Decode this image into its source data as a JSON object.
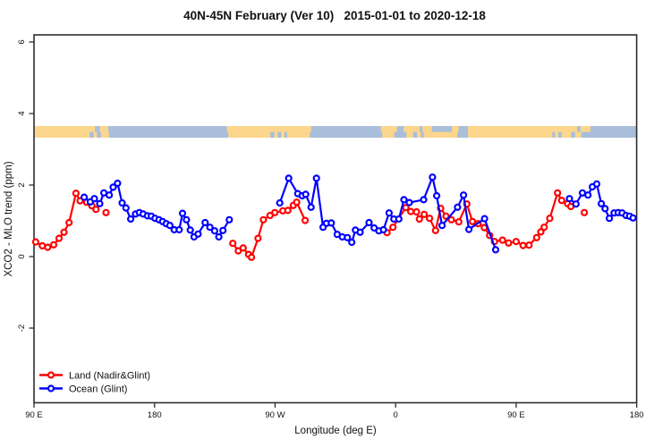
{
  "title": "40N-45N February (Ver 10)   2015-01-01 to 2020-12-18",
  "axes": {
    "x": {
      "label": "Longitude (deg E)",
      "ticks": [
        {
          "lon": 90,
          "label": "90 E"
        },
        {
          "lon": 180,
          "label": "180"
        },
        {
          "lon": 270,
          "label": "90 W"
        },
        {
          "lon": 360,
          "label": "0"
        },
        {
          "lon": 450,
          "label": "90 E"
        },
        {
          "lon": 540,
          "label": "180"
        }
      ]
    },
    "y": {
      "label": "XCO2 - MLO trend (ppm)",
      "ticks": [
        {
          "value": 6,
          "label": "6"
        },
        {
          "value": 4,
          "label": "4"
        },
        {
          "value": 2,
          "label": "2"
        },
        {
          "value": 0,
          "label": "0"
        },
        {
          "value": -2,
          "label": "-2"
        }
      ]
    }
  },
  "legend": {
    "items": [
      {
        "label": "Land (Nadir&Glint)",
        "color": "#ff0000"
      },
      {
        "label": "Ocean (Glint)",
        "color": "#0000ff"
      }
    ]
  },
  "map_strip": {
    "land_color": "#fbd68c",
    "ocean_color": "#a9bedb",
    "rows": [
      {
        "land_segments": [
          [
            90,
            135.5
          ],
          [
            139,
            145.5
          ],
          [
            234,
            297
          ],
          [
            349,
            361
          ],
          [
            366,
            378
          ],
          [
            380,
            387
          ],
          [
            402,
            407
          ],
          [
            414,
            495.5
          ],
          [
            498,
            505.5
          ]
        ]
      },
      {
        "land_segments": [
          [
            90,
            131.5
          ],
          [
            134.5,
            137
          ],
          [
            140,
            146
          ],
          [
            235,
            266.5
          ],
          [
            269.5,
            272
          ],
          [
            274.5,
            277
          ],
          [
            279,
            296
          ],
          [
            350,
            359
          ],
          [
            368,
            373
          ],
          [
            376,
            379
          ],
          [
            381,
            406
          ],
          [
            414,
            477
          ],
          [
            479,
            481.5
          ],
          [
            484,
            491
          ],
          [
            494,
            498.5
          ]
        ]
      }
    ]
  },
  "chart_data": {
    "type": "line",
    "title": "40N-45N February (Ver 10)   2015-01-01 to 2020-12-18",
    "xlabel": "Longitude (deg E)",
    "ylabel": "XCO2 - MLO trend (ppm)",
    "x_axis_lon_range": [
      90,
      540
    ],
    "x_tick_labels": [
      "90 E",
      "180",
      "90 W",
      "0",
      "90 E",
      "180"
    ],
    "ylim": [
      -4.1,
      6.2
    ],
    "grid": false,
    "legend_position": "bottom-left",
    "marker": "open-circle",
    "series": [
      {
        "name": "Land (Nadir&Glint)",
        "color": "#ff0000",
        "segments": [
          [
            [
              91.3,
              0.41
            ],
            [
              96.2,
              0.3
            ],
            [
              100.2,
              0.26
            ],
            [
              104.7,
              0.33
            ],
            [
              108.7,
              0.51
            ],
            [
              112.4,
              0.68
            ],
            [
              116.2,
              0.95
            ],
            [
              121.3,
              1.77
            ],
            [
              124.4,
              1.56
            ],
            [
              129.3,
              1.52
            ],
            [
              133.2,
              1.42
            ],
            [
              136.3,
              1.32
            ]
          ],
          [
            [
              143.8,
              1.23
            ]
          ],
          [
            [
              238.4,
              0.37
            ],
            [
              242.5,
              0.16
            ],
            [
              246.2,
              0.24
            ],
            [
              250.2,
              0.06
            ],
            [
              252.4,
              -0.02
            ],
            [
              257.3,
              0.51
            ],
            [
              261.3,
              1.03
            ],
            [
              266.2,
              1.15
            ],
            [
              269.8,
              1.23
            ],
            [
              275.8,
              1.28
            ],
            [
              279.6,
              1.29
            ],
            [
              283.6,
              1.43
            ],
            [
              286.1,
              1.52
            ],
            [
              292.5,
              1.01
            ]
          ],
          [
            [
              353.6,
              0.67
            ],
            [
              358.0,
              0.82
            ],
            [
              367.6,
              1.37
            ],
            [
              371.3,
              1.26
            ],
            [
              375.6,
              1.25
            ],
            [
              377.8,
              1.05
            ],
            [
              381.3,
              1.18
            ],
            [
              385.3,
              1.07
            ],
            [
              389.8,
              0.73
            ],
            [
              393.6,
              1.35
            ],
            [
              397.6,
              1.13
            ],
            [
              401.6,
              1.03
            ],
            [
              407.2,
              0.97
            ],
            [
              413.2,
              1.47
            ],
            [
              417.4,
              0.98
            ],
            [
              421.6,
              0.92
            ],
            [
              426.2,
              0.81
            ],
            [
              430.2,
              0.59
            ],
            [
              433.8,
              0.42
            ],
            [
              439.8,
              0.46
            ],
            [
              444.3,
              0.38
            ],
            [
              450.0,
              0.42
            ],
            [
              455.2,
              0.31
            ],
            [
              459.6,
              0.32
            ],
            [
              465.3,
              0.53
            ],
            [
              468.4,
              0.69
            ],
            [
              470.9,
              0.82
            ],
            [
              475.1,
              1.07
            ],
            [
              480.9,
              1.78
            ],
            [
              484.0,
              1.57
            ],
            [
              488.4,
              1.48
            ],
            [
              490.8,
              1.4
            ]
          ],
          [
            [
              500.9,
              1.23
            ]
          ]
        ]
      },
      {
        "name": "Ocean (Glint)",
        "color": "#0000ff",
        "segments": [
          [
            [
              127.5,
              1.66
            ],
            [
              132.0,
              1.53
            ],
            [
              135.1,
              1.62
            ],
            [
              139.1,
              1.48
            ],
            [
              142.2,
              1.78
            ],
            [
              146.2,
              1.72
            ],
            [
              149.1,
              1.94
            ],
            [
              152.4,
              2.05
            ],
            [
              155.8,
              1.5
            ],
            [
              158.7,
              1.36
            ],
            [
              162.2,
              1.05
            ],
            [
              165.8,
              1.19
            ],
            [
              168.7,
              1.23
            ],
            [
              171.5,
              1.19
            ],
            [
              174.7,
              1.14
            ],
            [
              177.6,
              1.13
            ],
            [
              180.4,
              1.07
            ],
            [
              183.3,
              1.03
            ],
            [
              186.0,
              0.98
            ],
            [
              188.7,
              0.92
            ],
            [
              191.5,
              0.87
            ],
            [
              194.7,
              0.75
            ],
            [
              198.4,
              0.75
            ],
            [
              200.9,
              1.21
            ],
            [
              203.8,
              1.03
            ],
            [
              206.7,
              0.74
            ],
            [
              209.5,
              0.55
            ],
            [
              212.5,
              0.63
            ],
            [
              217.8,
              0.95
            ],
            [
              221.3,
              0.82
            ],
            [
              224.9,
              0.72
            ],
            [
              228.0,
              0.55
            ],
            [
              231.1,
              0.73
            ],
            [
              235.8,
              1.03
            ]
          ],
          [
            [
              273.5,
              1.5
            ],
            [
              280.2,
              2.19
            ],
            [
              286.9,
              1.76
            ],
            [
              290.2,
              1.7
            ],
            [
              292.9,
              1.74
            ],
            [
              296.9,
              1.38
            ],
            [
              300.9,
              2.19
            ],
            [
              305.8,
              0.82
            ],
            [
              308.4,
              0.93
            ],
            [
              312.0,
              0.94
            ],
            [
              316.4,
              0.62
            ],
            [
              320.2,
              0.55
            ],
            [
              324.0,
              0.53
            ],
            [
              327.3,
              0.4
            ],
            [
              330.0,
              0.74
            ],
            [
              333.5,
              0.68
            ],
            [
              340.2,
              0.95
            ],
            [
              344.0,
              0.8
            ],
            [
              347.5,
              0.72
            ],
            [
              350.9,
              0.75
            ],
            [
              355.1,
              1.22
            ],
            [
              358.7,
              1.05
            ],
            [
              362.4,
              1.05
            ],
            [
              366.2,
              1.59
            ],
            [
              370.2,
              1.51
            ],
            [
              380.9,
              1.59
            ],
            [
              387.5,
              2.22
            ],
            [
              390.7,
              1.7
            ],
            [
              394.7,
              0.87
            ],
            [
              406.2,
              1.38
            ],
            [
              410.7,
              1.72
            ],
            [
              414.7,
              0.76
            ],
            [
              426.4,
              1.06
            ],
            [
              434.7,
              0.19
            ]
          ],
          [
            [
              489.8,
              1.62
            ],
            [
              494.7,
              1.47
            ],
            [
              499.5,
              1.78
            ],
            [
              503.6,
              1.72
            ],
            [
              506.9,
              1.95
            ],
            [
              510.2,
              2.03
            ],
            [
              513.6,
              1.48
            ],
            [
              516.4,
              1.34
            ],
            [
              519.6,
              1.07
            ],
            [
              523.1,
              1.22
            ],
            [
              526.2,
              1.23
            ],
            [
              529.1,
              1.22
            ],
            [
              532.0,
              1.15
            ],
            [
              534.7,
              1.13
            ],
            [
              537.3,
              1.08
            ]
          ]
        ]
      }
    ]
  }
}
